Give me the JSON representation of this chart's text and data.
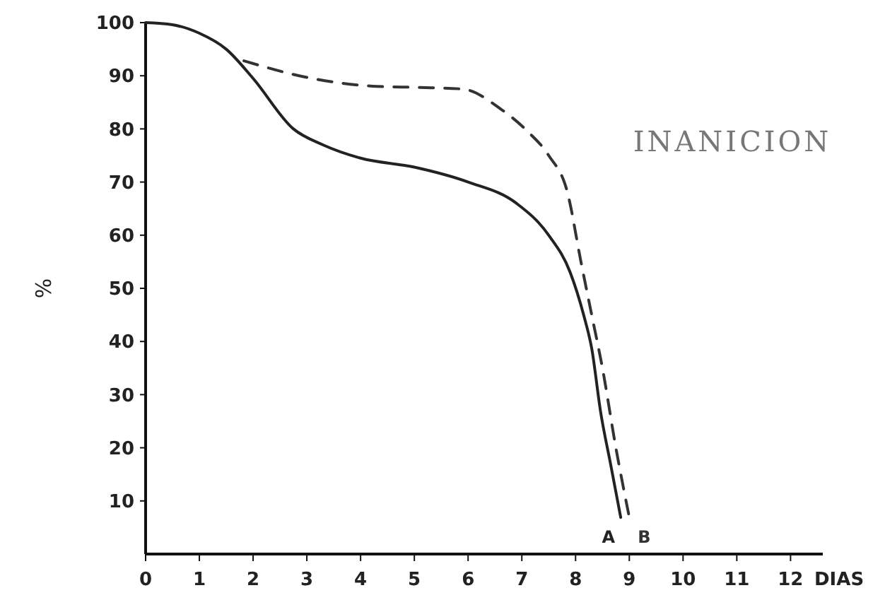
{
  "chart_data": {
    "type": "line",
    "xlabel": "DIAS",
    "ylabel": "%",
    "annotations": [
      "INANICION"
    ],
    "xlim": [
      0,
      12.6
    ],
    "ylim": [
      0,
      100
    ],
    "xticks": [
      0,
      1,
      2,
      3,
      4,
      5,
      6,
      7,
      8,
      9,
      10,
      11,
      12
    ],
    "yticks": [
      10,
      20,
      30,
      40,
      50,
      60,
      70,
      80,
      90,
      100
    ],
    "grid": false,
    "marker": "none",
    "series": [
      {
        "name": "A",
        "color": "#222222",
        "line_style": "solid",
        "x": [
          0,
          0.5,
          1,
          1.5,
          2,
          2.75,
          3.3,
          4,
          5,
          6,
          6.9,
          7.5,
          7.9,
          8.15,
          8.3,
          8.47,
          8.65,
          8.84
        ],
        "values": [
          100,
          99.6,
          98,
          95,
          89.5,
          80,
          77,
          74.5,
          72.8,
          70,
          66,
          60,
          53,
          45,
          38.7,
          26.5,
          17,
          6.9
        ]
      },
      {
        "name": "B",
        "color": "#333333",
        "line_style": "dashed",
        "x": [
          1.83,
          3,
          4.3,
          5.1,
          5.9,
          6.6,
          7.1,
          7.5,
          7.85,
          8.1,
          8.3,
          8.5,
          8.75,
          9
        ],
        "values": [
          92.8,
          89.7,
          88,
          87.8,
          87.5,
          83.8,
          79.6,
          75,
          68,
          55,
          45,
          35,
          20,
          6.9
        ]
      }
    ]
  }
}
